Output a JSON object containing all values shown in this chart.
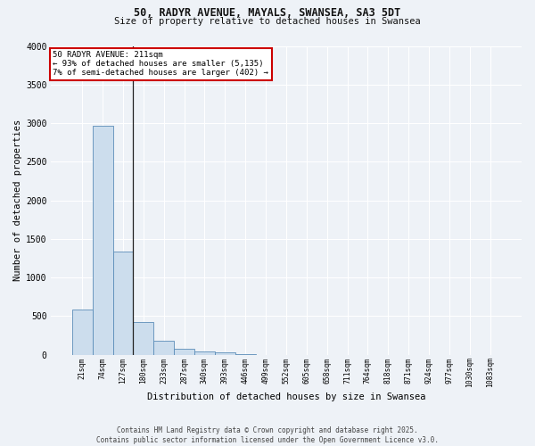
{
  "title_line1": "50, RADYR AVENUE, MAYALS, SWANSEA, SA3 5DT",
  "title_line2": "Size of property relative to detached houses in Swansea",
  "xlabel": "Distribution of detached houses by size in Swansea",
  "ylabel": "Number of detached properties",
  "bar_color": "#ccdded",
  "bar_edge_color": "#5b8db8",
  "background_color": "#eef2f7",
  "grid_color": "#ffffff",
  "annotation_box_color": "#cc0000",
  "annotation_line1": "50 RADYR AVENUE: 211sqm",
  "annotation_line2": "← 93% of detached houses are smaller (5,135)",
  "annotation_line3": "7% of semi-detached houses are larger (402) →",
  "categories": [
    "21sqm",
    "74sqm",
    "127sqm",
    "180sqm",
    "233sqm",
    "287sqm",
    "340sqm",
    "393sqm",
    "446sqm",
    "499sqm",
    "552sqm",
    "605sqm",
    "658sqm",
    "711sqm",
    "764sqm",
    "818sqm",
    "871sqm",
    "924sqm",
    "977sqm",
    "1030sqm",
    "1083sqm"
  ],
  "values": [
    580,
    2970,
    1340,
    420,
    175,
    70,
    40,
    25,
    10,
    0,
    0,
    0,
    0,
    0,
    0,
    0,
    0,
    0,
    0,
    0,
    0
  ],
  "ylim": [
    0,
    4000
  ],
  "yticks": [
    0,
    500,
    1000,
    1500,
    2000,
    2500,
    3000,
    3500,
    4000
  ],
  "footer_line1": "Contains HM Land Registry data © Crown copyright and database right 2025.",
  "footer_line2": "Contains public sector information licensed under the Open Government Licence v3.0."
}
